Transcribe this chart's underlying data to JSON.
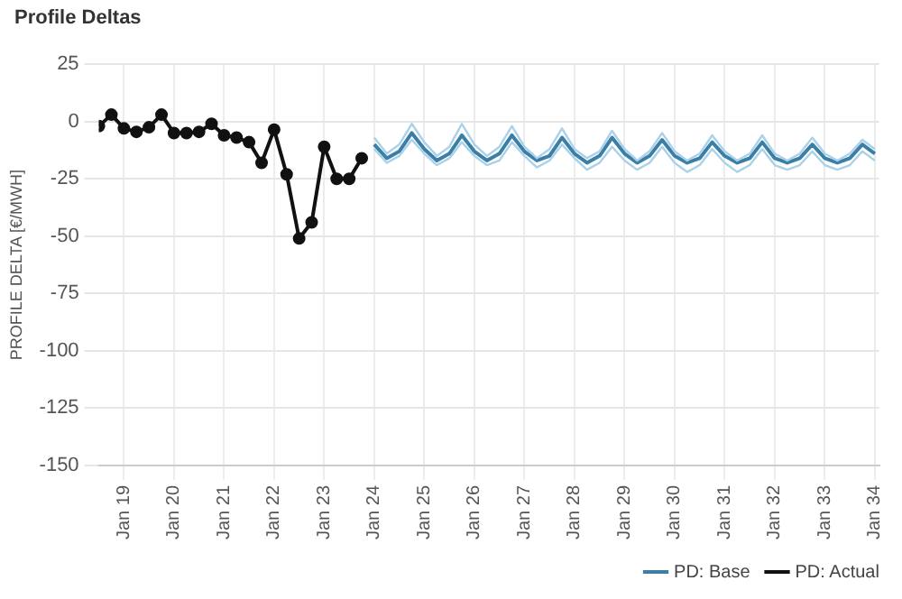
{
  "chart_data": {
    "type": "line",
    "title": "Profile Deltas",
    "ylabel": "PROFILE DELTA [€/MWH]",
    "xlim": [
      "2018-07",
      "2034-02"
    ],
    "xticks": [
      {
        "value": "2019-01",
        "label": "Jan 19"
      },
      {
        "value": "2020-01",
        "label": "Jan 20"
      },
      {
        "value": "2021-01",
        "label": "Jan 21"
      },
      {
        "value": "2022-01",
        "label": "Jan 22"
      },
      {
        "value": "2023-01",
        "label": "Jan 23"
      },
      {
        "value": "2024-01",
        "label": "Jan 24"
      },
      {
        "value": "2025-01",
        "label": "Jan 25"
      },
      {
        "value": "2026-01",
        "label": "Jan 26"
      },
      {
        "value": "2027-01",
        "label": "Jan 27"
      },
      {
        "value": "2028-01",
        "label": "Jan 28"
      },
      {
        "value": "2029-01",
        "label": "Jan 29"
      },
      {
        "value": "2030-01",
        "label": "Jan 30"
      },
      {
        "value": "2031-01",
        "label": "Jan 31"
      },
      {
        "value": "2032-01",
        "label": "Jan 32"
      },
      {
        "value": "2033-01",
        "label": "Jan 33"
      },
      {
        "value": "2034-01",
        "label": "Jan 34"
      }
    ],
    "ylim": [
      -150,
      25
    ],
    "yticks": [
      25,
      0,
      -25,
      -50,
      -75,
      -100,
      -125,
      -150
    ],
    "grid": true,
    "legend": "bottom right",
    "series": [
      {
        "color": "#a9d2ea",
        "marker": "none",
        "x": [
          "2024-01",
          "2024-04",
          "2024-07",
          "2024-10",
          "2025-01",
          "2025-04",
          "2025-07",
          "2025-10",
          "2026-01",
          "2026-04",
          "2026-07",
          "2026-10",
          "2027-01",
          "2027-04",
          "2027-07",
          "2027-10",
          "2028-01",
          "2028-04",
          "2028-07",
          "2028-10",
          "2029-01",
          "2029-04",
          "2029-07",
          "2029-10",
          "2030-01",
          "2030-04",
          "2030-07",
          "2030-10",
          "2031-01",
          "2031-04",
          "2031-07",
          "2031-10",
          "2032-01",
          "2032-04",
          "2032-07",
          "2032-10",
          "2033-01",
          "2033-04",
          "2033-07",
          "2033-10",
          "2034-01"
        ],
        "values": [
          -7,
          -14,
          -10,
          -1,
          -9,
          -15,
          -11,
          -1,
          -10,
          -15,
          -11,
          -2,
          -11,
          -16,
          -12,
          -3,
          -12,
          -16,
          -13,
          -4,
          -12,
          -17,
          -13,
          -5,
          -13,
          -17,
          -14,
          -6,
          -13,
          -17,
          -14,
          -6,
          -14,
          -17,
          -14,
          -7,
          -14,
          -17,
          -14,
          -8,
          -12
        ]
      },
      {
        "color": "#a9d2ea",
        "marker": "none",
        "x": [
          "2024-01",
          "2024-04",
          "2024-07",
          "2024-10",
          "2025-01",
          "2025-04",
          "2025-07",
          "2025-10",
          "2026-01",
          "2026-04",
          "2026-07",
          "2026-10",
          "2027-01",
          "2027-04",
          "2027-07",
          "2027-10",
          "2028-01",
          "2028-04",
          "2028-07",
          "2028-10",
          "2029-01",
          "2029-04",
          "2029-07",
          "2029-10",
          "2030-01",
          "2030-04",
          "2030-07",
          "2030-10",
          "2031-01",
          "2031-04",
          "2031-07",
          "2031-10",
          "2032-01",
          "2032-04",
          "2032-07",
          "2032-10",
          "2033-01",
          "2033-04",
          "2033-07",
          "2033-10",
          "2034-01"
        ],
        "values": [
          -12,
          -18,
          -15,
          -8,
          -14,
          -19,
          -16,
          -9,
          -15,
          -19,
          -17,
          -9,
          -15,
          -20,
          -17,
          -10,
          -16,
          -21,
          -18,
          -11,
          -17,
          -21,
          -18,
          -11,
          -18,
          -22,
          -19,
          -12,
          -18,
          -22,
          -19,
          -12,
          -19,
          -21,
          -19,
          -13,
          -19,
          -21,
          -19,
          -13,
          -17
        ]
      },
      {
        "name": "PD: Base",
        "color": "#3c7fa6",
        "marker": "none",
        "x": [
          "2024-01",
          "2024-04",
          "2024-07",
          "2024-10",
          "2025-01",
          "2025-04",
          "2025-07",
          "2025-10",
          "2026-01",
          "2026-04",
          "2026-07",
          "2026-10",
          "2027-01",
          "2027-04",
          "2027-07",
          "2027-10",
          "2028-01",
          "2028-04",
          "2028-07",
          "2028-10",
          "2029-01",
          "2029-04",
          "2029-07",
          "2029-10",
          "2030-01",
          "2030-04",
          "2030-07",
          "2030-10",
          "2031-01",
          "2031-04",
          "2031-07",
          "2031-10",
          "2032-01",
          "2032-04",
          "2032-07",
          "2032-10",
          "2033-01",
          "2033-04",
          "2033-07",
          "2033-10",
          "2034-01"
        ],
        "values": [
          -10,
          -16,
          -13,
          -5,
          -12,
          -17,
          -14,
          -6,
          -13,
          -17,
          -14,
          -6,
          -13,
          -17,
          -15,
          -7,
          -14,
          -18,
          -15,
          -7,
          -14,
          -18,
          -15,
          -8,
          -15,
          -18,
          -16,
          -9,
          -15,
          -18,
          -16,
          -9,
          -16,
          -18,
          -16,
          -10,
          -16,
          -18,
          -16,
          -10,
          -14
        ]
      },
      {
        "name": "PD: Actual",
        "color": "#111111",
        "marker": "circle",
        "x": [
          "2018-07",
          "2018-10",
          "2019-01",
          "2019-04",
          "2019-07",
          "2019-10",
          "2020-01",
          "2020-04",
          "2020-07",
          "2020-10",
          "2021-01",
          "2021-04",
          "2021-07",
          "2021-10",
          "2022-01",
          "2022-04",
          "2022-07",
          "2022-10",
          "2023-01",
          "2023-04",
          "2023-07",
          "2023-10"
        ],
        "values": [
          -2,
          3,
          -3,
          -4.5,
          -2.5,
          3,
          -5,
          -5,
          -4.5,
          -1,
          -6,
          -7,
          -9,
          -18,
          -3.5,
          -23,
          -51,
          -44,
          -11,
          -25,
          -25,
          -16
        ]
      }
    ]
  }
}
